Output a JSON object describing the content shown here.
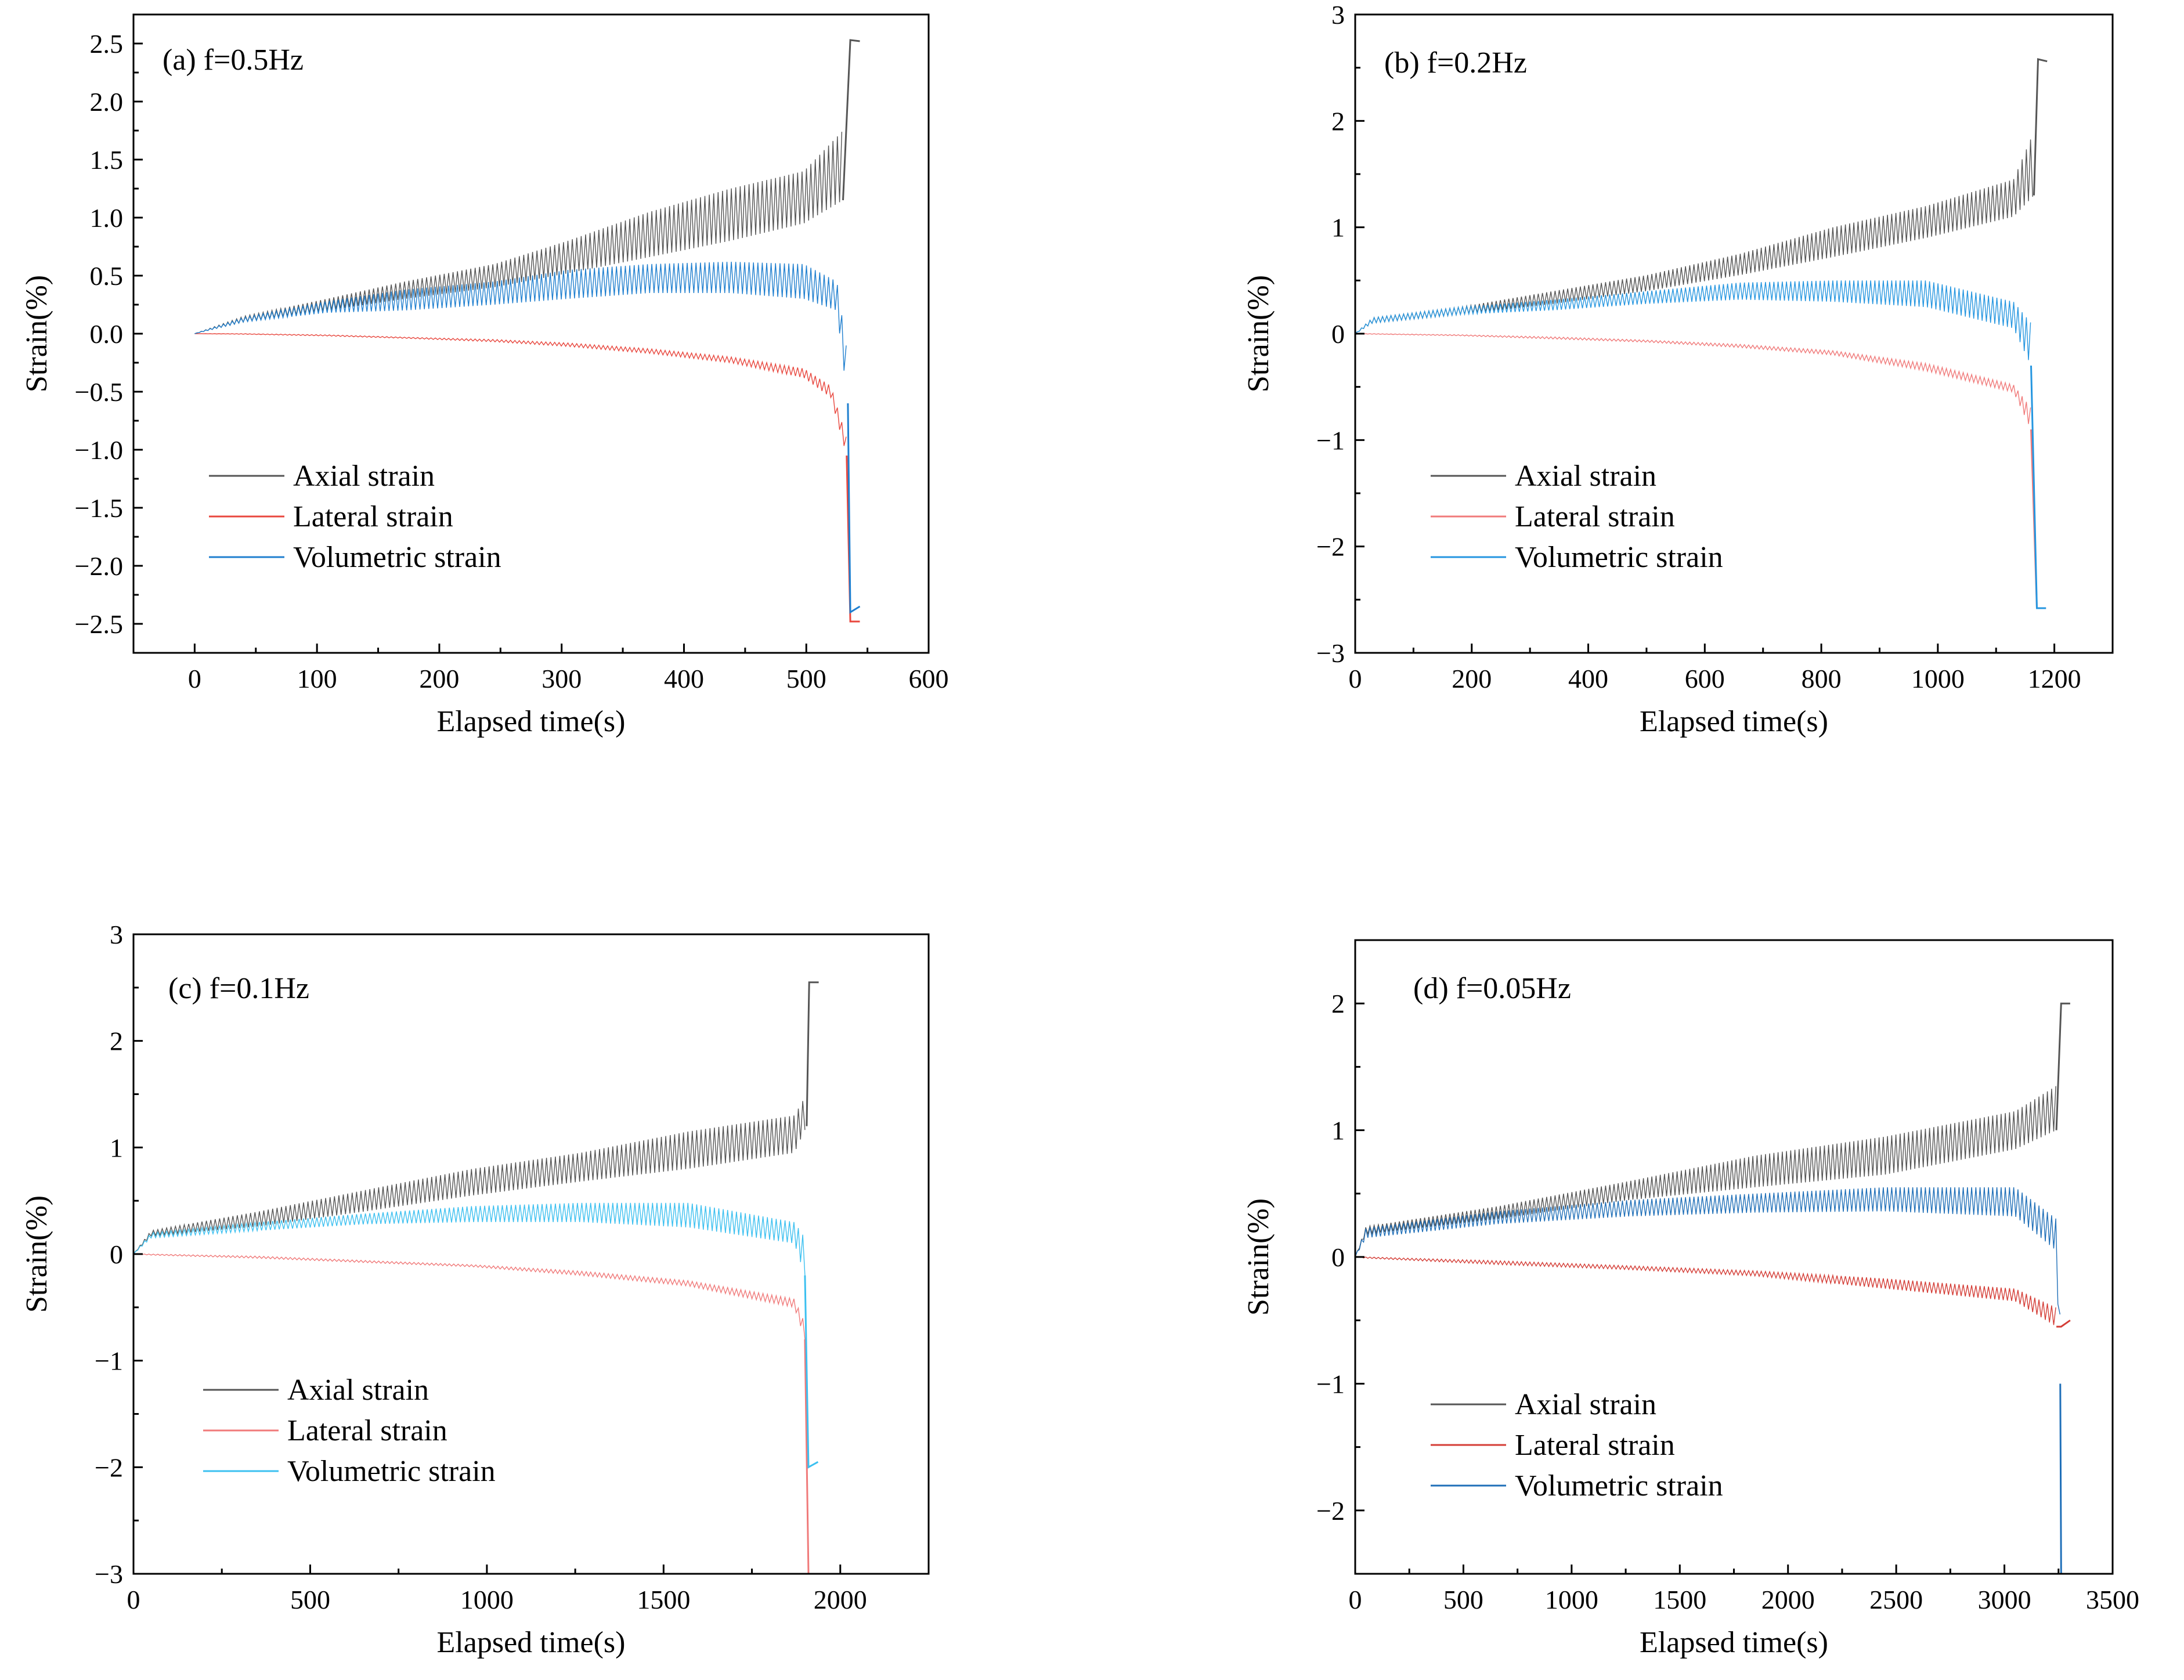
{
  "figure": {
    "xlabel": "Elapsed time(s)",
    "ylabel": "Strain(%)",
    "legend_placement": "lower-left"
  },
  "chart_data": [
    {
      "type": "line",
      "title": "(a) f=0.5Hz",
      "xlabel": "Elapsed time(s)",
      "ylabel": "Strain(%)",
      "xlim": [
        -50,
        600
      ],
      "ylim": [
        -2.75,
        2.75
      ],
      "xticks": [
        0,
        100,
        200,
        300,
        400,
        500,
        600
      ],
      "yticks": [
        -2.5,
        -2.0,
        -1.5,
        -1.0,
        -0.5,
        0.0,
        0.5,
        1.0,
        1.5,
        2.0,
        2.5
      ],
      "ytick_labels": [
        "−2.5",
        "−2.0",
        "−1.5",
        "−1.0",
        "−0.5",
        "0.0",
        "0.5",
        "1.0",
        "1.5",
        "2.0",
        "2.5"
      ],
      "failure_time": 535,
      "series": [
        {
          "name": "Axial strain",
          "color": "#555555",
          "x": [
            0,
            40,
            108,
            172,
            245,
            305,
            372,
            438,
            498,
            530,
            536
          ],
          "low": [
            0,
            0.1,
            0.2,
            0.3,
            0.4,
            0.52,
            0.66,
            0.8,
            0.95,
            1.15,
            2.53
          ],
          "high": [
            0,
            0.15,
            0.3,
            0.45,
            0.6,
            0.8,
            1.05,
            1.25,
            1.4,
            1.75,
            2.53
          ],
          "end": 2.52
        },
        {
          "name": "Lateral strain",
          "color": "#e8473e",
          "x": [
            0,
            40,
            108,
            172,
            245,
            305,
            372,
            438,
            498,
            520,
            533,
            536
          ],
          "low": [
            0,
            -0.005,
            -0.02,
            -0.04,
            -0.07,
            -0.11,
            -0.17,
            -0.25,
            -0.38,
            -0.55,
            -1.05,
            -2.48
          ],
          "high": [
            0,
            0,
            -0.01,
            -0.03,
            -0.05,
            -0.08,
            -0.13,
            -0.2,
            -0.3,
            -0.45,
            -0.9,
            -2.48
          ],
          "end": -2.48
        },
        {
          "name": "Volumetric strain",
          "color": "#1f7fcf",
          "x": [
            0,
            40,
            108,
            172,
            245,
            305,
            372,
            438,
            498,
            525,
            534,
            536
          ],
          "low": [
            0,
            0.1,
            0.18,
            0.2,
            0.25,
            0.3,
            0.35,
            0.35,
            0.3,
            0.2,
            -0.6,
            -2.4
          ],
          "high": [
            0,
            0.14,
            0.28,
            0.38,
            0.45,
            0.55,
            0.6,
            0.62,
            0.6,
            0.45,
            -0.2,
            -2.4
          ],
          "end": -2.35
        }
      ],
      "legend": [
        "Axial strain",
        "Lateral strain",
        "Volumetric strain"
      ]
    },
    {
      "type": "line",
      "title": "(b) f=0.2Hz",
      "xlabel": "Elapsed time(s)",
      "ylabel": "Strain(%)",
      "xlim": [
        0,
        1300
      ],
      "ylim": [
        -3,
        3
      ],
      "xticks": [
        0,
        200,
        400,
        600,
        800,
        1000,
        1200
      ],
      "yticks": [
        -3,
        -2,
        -1,
        0,
        1,
        2,
        3
      ],
      "ytick_labels": [
        "−3",
        "−2",
        "−1",
        "0",
        "1",
        "2",
        "3"
      ],
      "failure_time": 1170,
      "series": [
        {
          "name": "Axial strain",
          "color": "#555555",
          "x": [
            0,
            30,
            180,
            340,
            500,
            660,
            820,
            980,
            1130,
            1165,
            1172
          ],
          "low": [
            0,
            0.1,
            0.18,
            0.28,
            0.4,
            0.55,
            0.72,
            0.9,
            1.1,
            1.3,
            2.58
          ],
          "high": [
            0,
            0.15,
            0.25,
            0.4,
            0.55,
            0.75,
            1.0,
            1.2,
            1.45,
            1.9,
            2.58
          ],
          "end": 2.56
        },
        {
          "name": "Lateral strain",
          "color": "#f07a7a",
          "x": [
            0,
            30,
            180,
            340,
            500,
            660,
            820,
            980,
            1130,
            1160,
            1170
          ],
          "low": [
            0,
            -0.005,
            -0.02,
            -0.05,
            -0.08,
            -0.13,
            -0.2,
            -0.35,
            -0.55,
            -0.9,
            -2.58
          ],
          "high": [
            0,
            0,
            -0.01,
            -0.03,
            -0.06,
            -0.1,
            -0.16,
            -0.28,
            -0.48,
            -0.7,
            -2.58
          ],
          "end": -2.58
        },
        {
          "name": "Volumetric strain",
          "color": "#2596e0",
          "x": [
            0,
            30,
            180,
            340,
            500,
            660,
            820,
            980,
            1130,
            1160,
            1170
          ],
          "low": [
            0,
            0.1,
            0.18,
            0.22,
            0.28,
            0.32,
            0.3,
            0.25,
            0.05,
            -0.3,
            -2.58
          ],
          "high": [
            0,
            0.15,
            0.25,
            0.32,
            0.4,
            0.48,
            0.5,
            0.5,
            0.3,
            0.1,
            -2.58
          ],
          "end": -2.58
        }
      ],
      "legend": [
        "Axial strain",
        "Lateral strain",
        "Volumetric strain"
      ]
    },
    {
      "type": "line",
      "title": "(c) f=0.1Hz",
      "xlabel": "Elapsed time(s)",
      "ylabel": "Strain(%)",
      "xlim": [
        0,
        2250
      ],
      "ylim": [
        -3,
        3
      ],
      "xticks": [
        0,
        500,
        1000,
        1500,
        2000
      ],
      "yticks": [
        -3,
        -2,
        -1,
        0,
        1,
        2,
        3
      ],
      "ytick_labels": [
        "−3",
        "−2",
        "−1",
        "0",
        "1",
        "2",
        "3"
      ],
      "failure_time": 1910,
      "series": [
        {
          "name": "Axial strain",
          "color": "#555555",
          "x": [
            0,
            50,
            355,
            655,
            960,
            1265,
            1570,
            1870,
            1905,
            1912
          ],
          "low": [
            0,
            0.17,
            0.26,
            0.4,
            0.55,
            0.68,
            0.8,
            0.95,
            1.2,
            2.55
          ],
          "high": [
            0,
            0.22,
            0.4,
            0.6,
            0.8,
            0.95,
            1.15,
            1.3,
            1.5,
            2.55
          ],
          "end": 2.55
        },
        {
          "name": "Lateral strain",
          "color": "#f07a7a",
          "x": [
            0,
            50,
            355,
            655,
            960,
            1265,
            1570,
            1870,
            1900,
            1910
          ],
          "low": [
            0,
            -0.01,
            -0.04,
            -0.08,
            -0.12,
            -0.2,
            -0.3,
            -0.5,
            -0.8,
            -3.0
          ],
          "high": [
            0,
            0,
            -0.02,
            -0.06,
            -0.1,
            -0.16,
            -0.25,
            -0.42,
            -0.65,
            -3.0
          ],
          "end": -3.0
        },
        {
          "name": "Volumetric strain",
          "color": "#3cc0f0",
          "x": [
            0,
            50,
            355,
            655,
            960,
            1265,
            1570,
            1870,
            1900,
            1910
          ],
          "low": [
            0,
            0.15,
            0.22,
            0.28,
            0.3,
            0.3,
            0.25,
            0.1,
            -0.2,
            -2.0
          ],
          "high": [
            0,
            0.2,
            0.3,
            0.38,
            0.45,
            0.48,
            0.48,
            0.3,
            0.15,
            -2.0
          ],
          "end": -1.95
        }
      ],
      "legend": [
        "Axial strain",
        "Lateral strain",
        "Volumetric strain"
      ]
    },
    {
      "type": "line",
      "title": "(d) f=0.05Hz",
      "xlabel": "Elapsed time(s)",
      "ylabel": "Strain(%)",
      "xlim": [
        0,
        3500
      ],
      "ylim": [
        -2.5,
        2.5
      ],
      "xticks": [
        0,
        500,
        1000,
        1500,
        2000,
        2500,
        3000,
        3500
      ],
      "yticks": [
        -2,
        -1,
        0,
        1,
        2
      ],
      "ytick_labels": [
        "−2",
        "−1",
        "0",
        "1",
        "2"
      ],
      "failure_time": 3260,
      "series": [
        {
          "name": "Axial strain",
          "color": "#555555",
          "x": [
            0,
            50,
            660,
            1270,
            1850,
            2450,
            3050,
            3240,
            3262
          ],
          "low": [
            0,
            0.18,
            0.3,
            0.45,
            0.55,
            0.65,
            0.85,
            1.0,
            2.0
          ],
          "high": [
            0,
            0.24,
            0.4,
            0.6,
            0.8,
            0.95,
            1.15,
            1.35,
            2.0
          ],
          "end": 2.0
        },
        {
          "name": "Lateral strain",
          "color": "#d43d36",
          "x": [
            0,
            50,
            660,
            1270,
            1850,
            2450,
            3050,
            3240,
            3262
          ],
          "low": [
            0,
            -0.01,
            -0.06,
            -0.1,
            -0.15,
            -0.25,
            -0.35,
            -0.55,
            -0.55
          ],
          "high": [
            0,
            0,
            -0.03,
            -0.07,
            -0.11,
            -0.17,
            -0.25,
            -0.4,
            -0.4
          ],
          "end": -0.5
        },
        {
          "name": "Volumetric strain",
          "color": "#1f6fb8",
          "x": [
            0,
            50,
            660,
            1270,
            1850,
            2450,
            3050,
            3240,
            3258,
            3262
          ],
          "low": [
            0,
            0.15,
            0.26,
            0.32,
            0.35,
            0.36,
            0.32,
            0.05,
            -1.0,
            -2.5
          ],
          "high": [
            0,
            0.23,
            0.36,
            0.45,
            0.5,
            0.55,
            0.55,
            0.3,
            -0.5,
            -2.5
          ],
          "end": -2.5
        }
      ],
      "legend": [
        "Axial strain",
        "Lateral strain",
        "Volumetric strain"
      ]
    }
  ]
}
